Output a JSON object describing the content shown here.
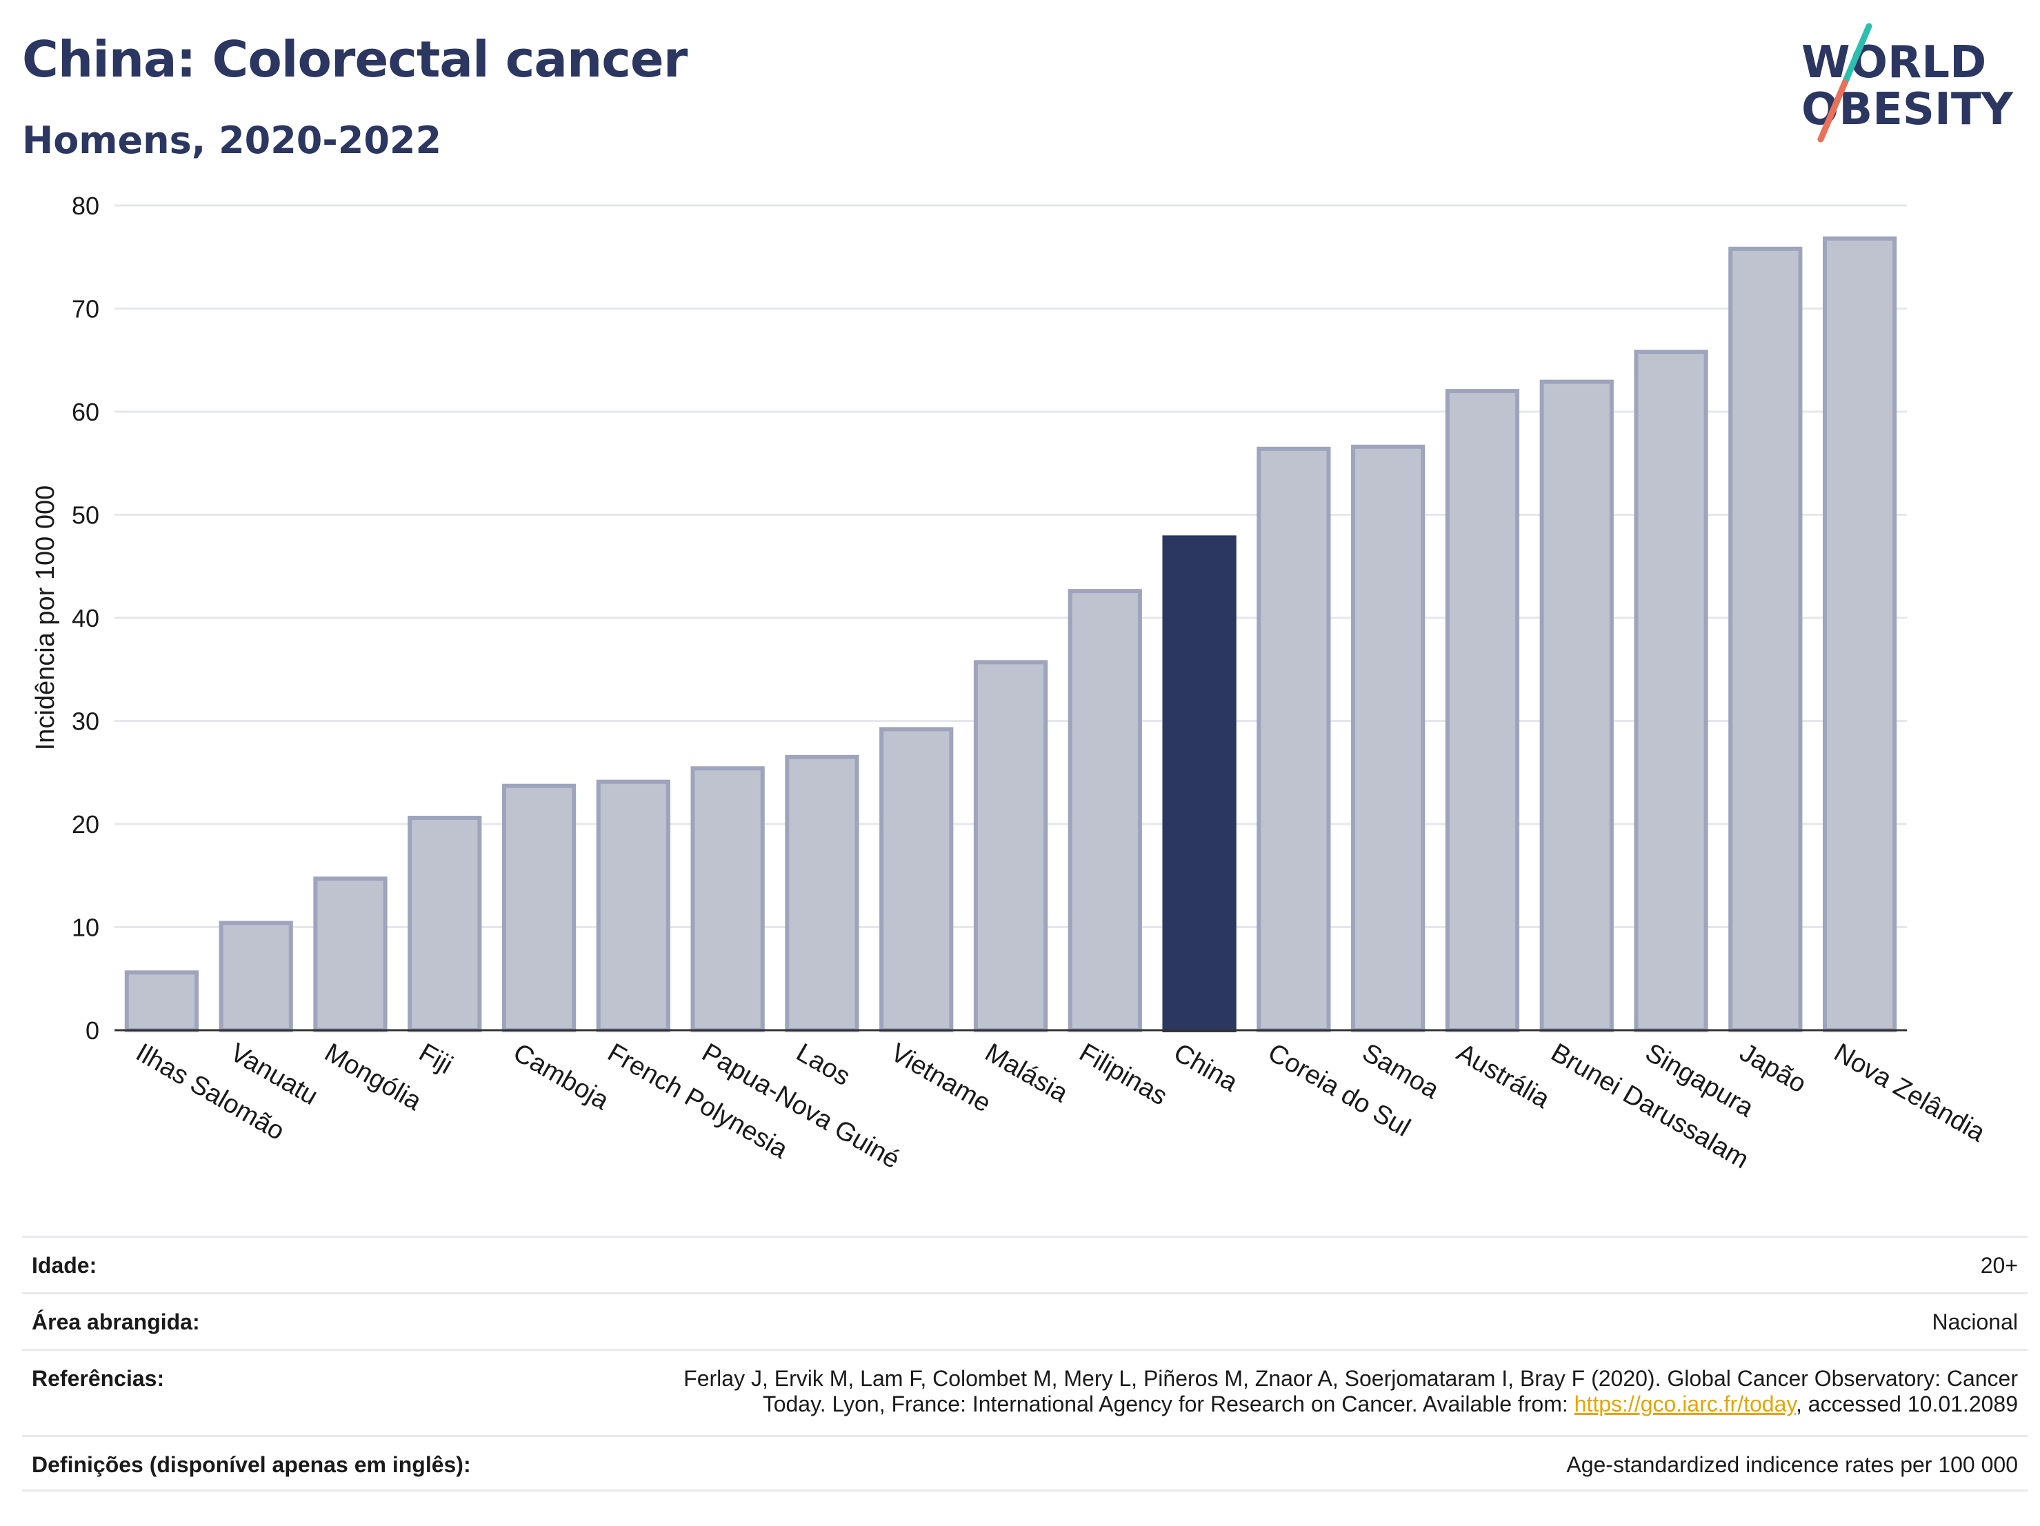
{
  "header": {
    "title": "China: Colorectal cancer",
    "subtitle": "Homens, 2020-2022",
    "logo_line1": "WORLD",
    "logo_line2": "OBESITY"
  },
  "colors": {
    "brand": "#2b3661",
    "bar": "#bfc3d0",
    "bar_outline": "#9ea4bc",
    "highlight": "#2b3661",
    "logo_teal": "#2bbfb0",
    "logo_coral": "#e8715a",
    "link": "#e6a400"
  },
  "chart_data": {
    "type": "bar",
    "ylabel": "Incidência por 100 000",
    "xlabel": "",
    "ylim": [
      0,
      80
    ],
    "yticks": [
      0,
      10,
      20,
      30,
      40,
      50,
      60,
      70,
      80
    ],
    "grid": true,
    "highlight_category": "China",
    "categories": [
      "Ilhas Salomão",
      "Vanuatu",
      "Mongólia",
      "Fiji",
      "Camboja",
      "French Polynesia",
      "Papua-Nova Guiné",
      "Laos",
      "Vietname",
      "Malásia",
      "Filipinas",
      "China",
      "Coreia do Sul",
      "Samoa",
      "Austrália",
      "Brunei Darussalam",
      "Singapura",
      "Japão",
      "Nova Zelândia"
    ],
    "values": [
      5.6,
      10.4,
      14.7,
      20.6,
      23.7,
      24.1,
      25.4,
      26.5,
      29.2,
      35.7,
      42.6,
      47.8,
      56.4,
      56.6,
      62.0,
      62.9,
      65.8,
      75.8,
      76.8
    ]
  },
  "meta": {
    "age_label": "Idade:",
    "age_value": "20+",
    "area_label": "Área abrangida:",
    "area_value": "Nacional",
    "ref_label": "Referências:",
    "ref_line1": "Ferlay J, Ervik M, Lam F, Colombet M, Mery L, Piñeros M, Znaor A, Soerjomataram I, Bray F (2020). Global Cancer Observatory: Cancer",
    "ref_line2_pre": "Today. Lyon, France: International Agency for Research on Cancer. Available from: ",
    "ref_link": "https://gco.iarc.fr/today",
    "ref_line2_post": ", accessed 10.01.2089",
    "def_label": "Definições (disponível apenas em inglês):",
    "def_value": "Age-standardized indicence rates per 100 000"
  }
}
